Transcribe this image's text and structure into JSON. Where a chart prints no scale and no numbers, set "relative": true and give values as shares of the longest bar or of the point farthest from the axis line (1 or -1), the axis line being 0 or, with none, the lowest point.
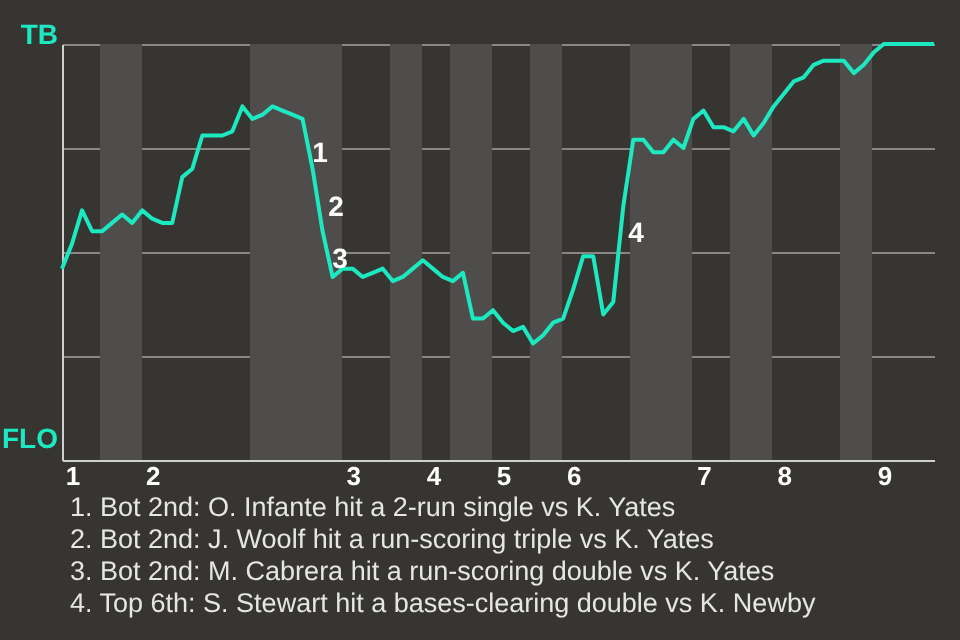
{
  "chart_data": {
    "type": "line",
    "categories": [
      null,
      "1",
      null,
      null,
      null,
      null,
      null,
      null,
      null,
      "2",
      null,
      null,
      null,
      null,
      null,
      null,
      null,
      null,
      null,
      null,
      null,
      null,
      null,
      null,
      null,
      null,
      null,
      null,
      null,
      "3",
      null,
      null,
      null,
      null,
      null,
      null,
      null,
      "4",
      null,
      null,
      null,
      null,
      null,
      null,
      "5",
      null,
      null,
      null,
      null,
      null,
      null,
      "6",
      null,
      null,
      null,
      null,
      null,
      null,
      null,
      null,
      null,
      null,
      null,
      null,
      "7",
      null,
      null,
      null,
      null,
      null,
      null,
      null,
      "8",
      null,
      null,
      null,
      null,
      null,
      null,
      null,
      null,
      null,
      "9",
      null,
      null,
      null,
      null,
      null
    ],
    "series": [
      {
        "color": "#1de9c0",
        "values": [
          0.46,
          0.52,
          0.6,
          0.55,
          0.55,
          0.57,
          0.59,
          0.57,
          0.6,
          0.58,
          0.57,
          0.57,
          0.68,
          0.7,
          0.78,
          0.78,
          0.78,
          0.79,
          0.85,
          0.82,
          0.83,
          0.85,
          0.84,
          0.83,
          0.82,
          0.7,
          0.55,
          0.44,
          0.46,
          0.46,
          0.44,
          0.45,
          0.46,
          0.43,
          0.44,
          0.46,
          0.48,
          0.46,
          0.44,
          0.43,
          0.45,
          0.34,
          0.34,
          0.36,
          0.33,
          0.31,
          0.32,
          0.28,
          0.3,
          0.33,
          0.34,
          0.41,
          0.49,
          0.49,
          0.35,
          0.38,
          0.61,
          0.77,
          0.77,
          0.74,
          0.74,
          0.77,
          0.75,
          0.82,
          0.84,
          0.8,
          0.8,
          0.79,
          0.82,
          0.78,
          0.81,
          0.85,
          0.88,
          0.91,
          0.92,
          0.95,
          0.96,
          0.96,
          0.96,
          0.93,
          0.95,
          0.98,
          1.0,
          1.0,
          1.0,
          1.0,
          1.0,
          1.0
        ]
      }
    ],
    "relative": true,
    "grid": "y",
    "marker": "none",
    "line_style": "solid",
    "annotations": [
      "TB",
      "FLO",
      "1",
      "2",
      "3",
      "4",
      "1. Bot 2nd: O. Infante hit a 2-run single vs K. Yates",
      "2. Bot 2nd: J. Woolf hit a run-scoring triple vs K. Yates",
      "3. Bot 2nd: M. Cabrera hit a run-scoring double vs K. Yates",
      "4. Top 6th: S. Stewart hit a bases-clearing double vs K. Newby"
    ]
  }
}
